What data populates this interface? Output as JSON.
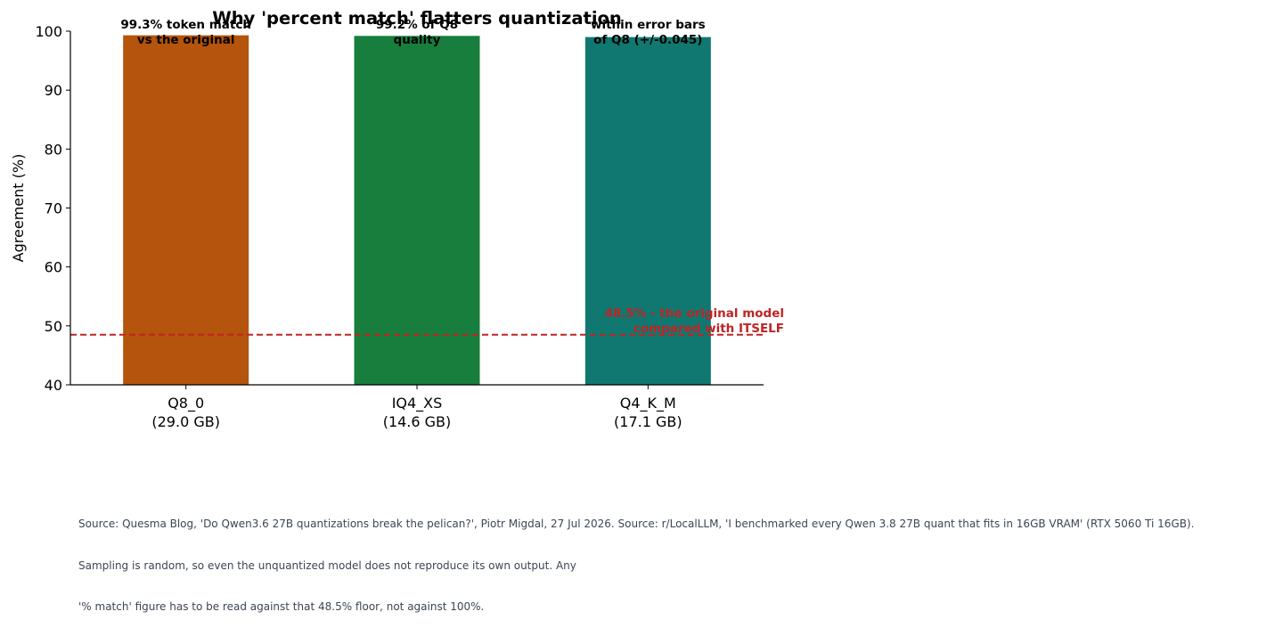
{
  "chart_data": {
    "type": "bar",
    "title": "Why 'percent match' flatters quantization",
    "ylabel": "Agreement (%)",
    "xlabel": "",
    "ylim": [
      40,
      100
    ],
    "yticks": [
      40,
      50,
      60,
      70,
      80,
      90,
      100
    ],
    "categories": [
      {
        "name": "Q8_0",
        "size": "(29.0 GB)"
      },
      {
        "name": "IQ4_XS",
        "size": "(14.6 GB)"
      },
      {
        "name": "Q4_K_M",
        "size": "(17.1 GB)"
      }
    ],
    "values": [
      99.3,
      99.2,
      99.0
    ],
    "colors": [
      "#b5540c",
      "#177e3e",
      "#107870"
    ],
    "bar_labels": [
      [
        "99.3% token match",
        "vs the original"
      ],
      [
        "99.2% of Q8",
        "quality"
      ],
      [
        "within error bars",
        "of Q8 (+/-0.045)"
      ]
    ],
    "reference_line": {
      "value": 48.5,
      "color": "#bf2424",
      "style": "dashed",
      "label": [
        "48.5% - the original model",
        "compared with ITSELF"
      ]
    },
    "grid": false
  },
  "footer": {
    "lines": [
      "Source: Quesma Blog, 'Do Qwen3.6 27B quantizations break the pelican?', Piotr Migdal, 27 Jul 2026. Source: r/LocalLLM, 'I benchmarked every Qwen 3.8 27B quant that fits in 16GB VRAM' (RTX 5060 Ti 16GB).",
      "Sampling is random, so even the unquantized model does not reproduce its own output. Any",
      "'% match' figure has to be read against that 48.5% floor, not against 100%."
    ]
  }
}
